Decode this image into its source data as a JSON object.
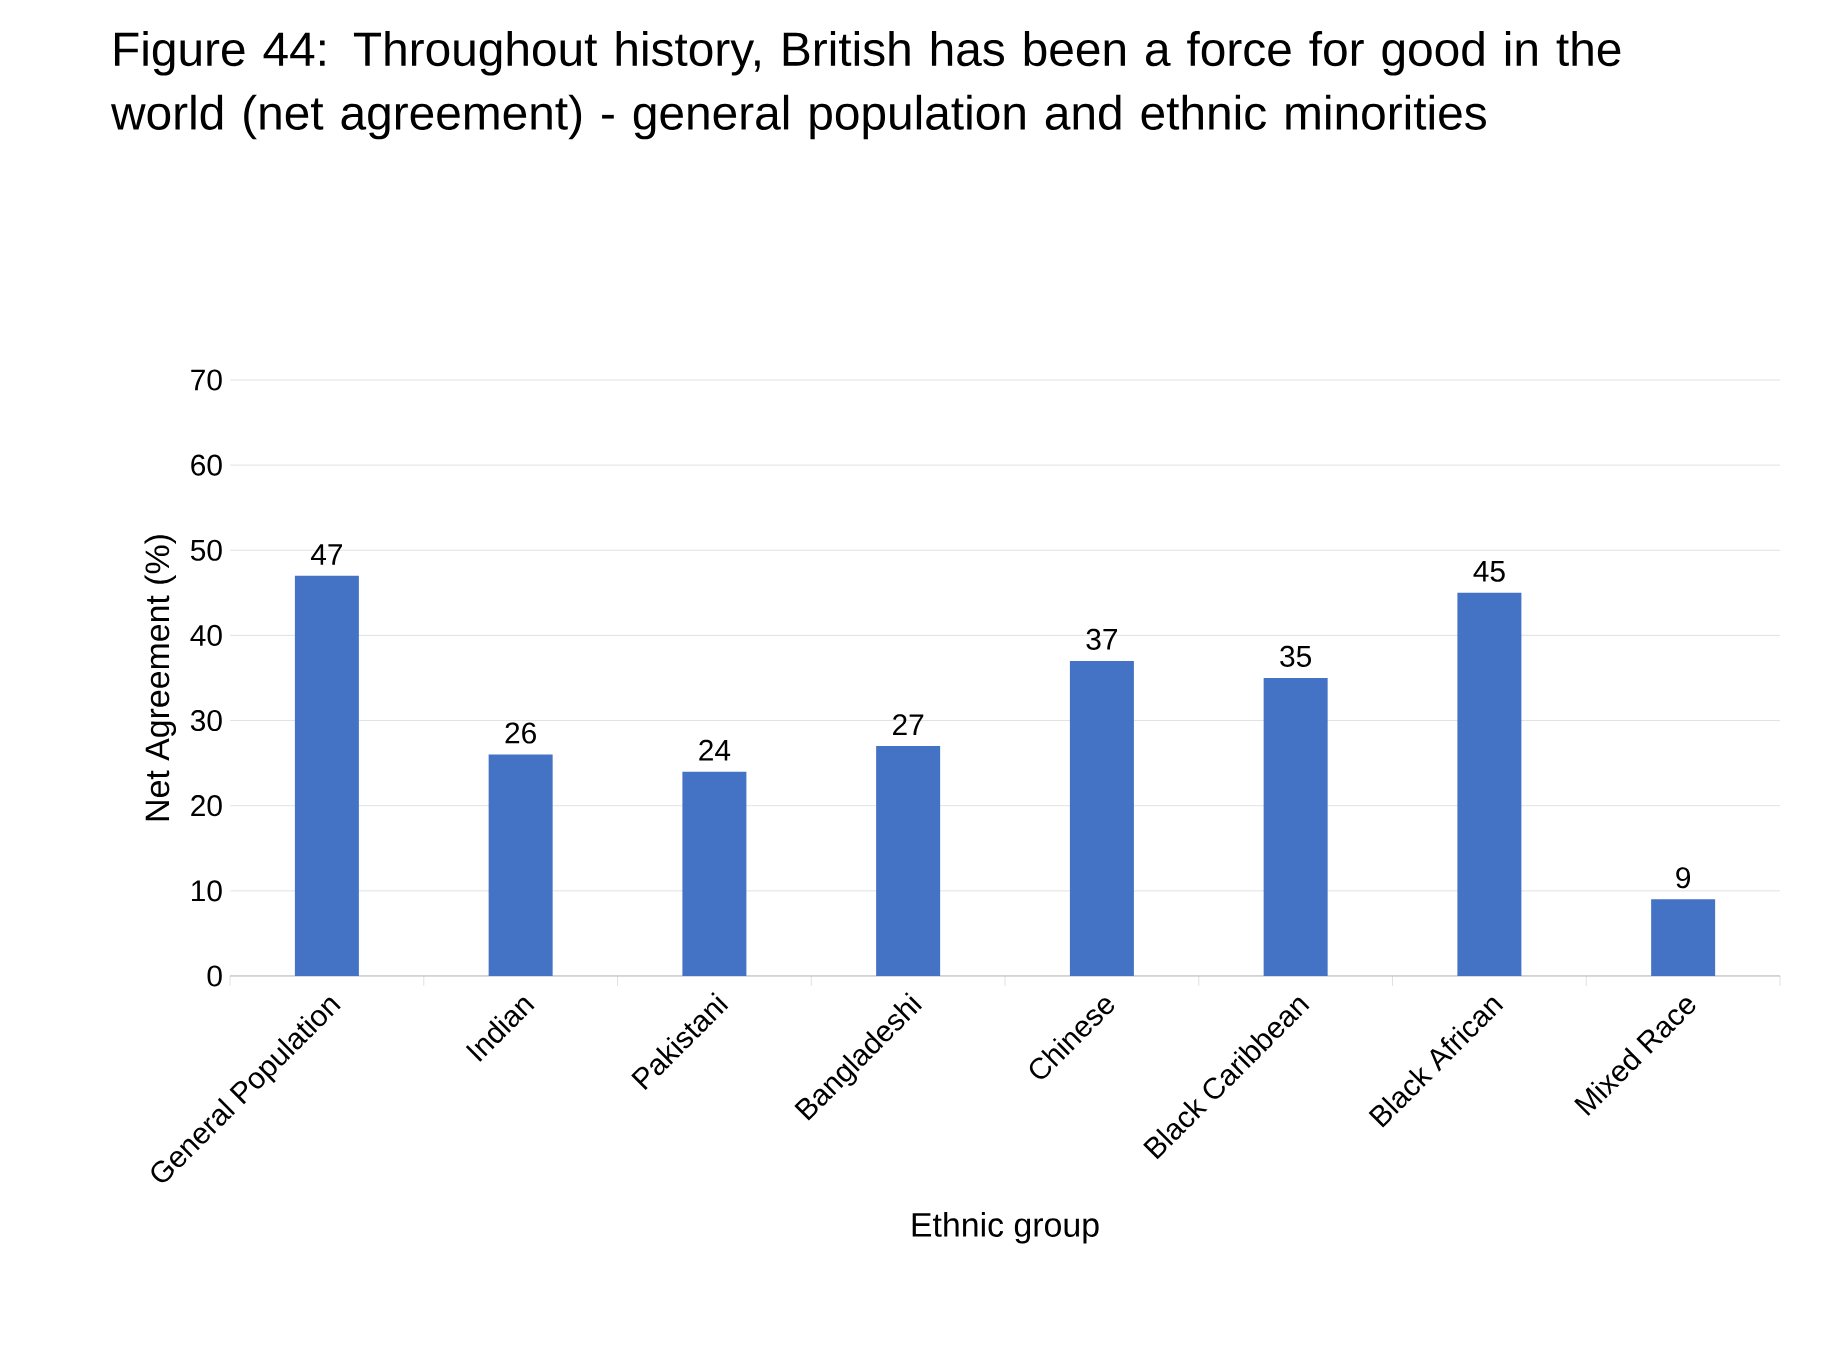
{
  "chart_data": {
    "type": "bar",
    "title": "Figure 44: Throughout history, British has been a force for good in the world (net agreement) - general population and ethnic minorities",
    "xlabel": "Ethnic group",
    "ylabel": "Net Agreement (%)",
    "categories": [
      "General Population",
      "Indian",
      "Pakistani",
      "Bangladeshi",
      "Chinese",
      "Black Caribbean",
      "Black African",
      "Mixed Race"
    ],
    "values": [
      47,
      26,
      24,
      27,
      37,
      35,
      45,
      9
    ],
    "color": "#4472c4",
    "ylim": [
      0,
      70
    ],
    "yticks": [
      0,
      10,
      20,
      30,
      40,
      50,
      60,
      70
    ],
    "grid": "y",
    "data_labels": true
  }
}
